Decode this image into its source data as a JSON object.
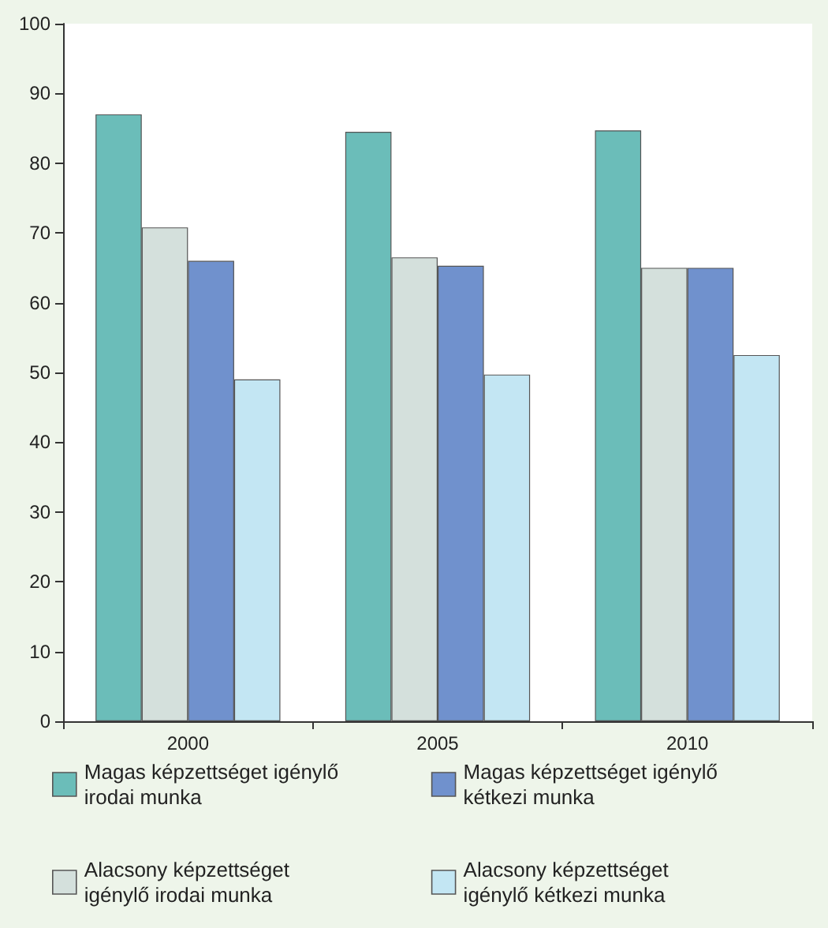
{
  "chart_data": {
    "type": "bar",
    "categories": [
      "2000",
      "2005",
      "2010"
    ],
    "series": [
      {
        "name": "Magas képzettséget igénylő irodai munka",
        "color": "#6bbdb9",
        "values": [
          87,
          84.5,
          84.7
        ]
      },
      {
        "name": "Alacsony képzettséget igénylő irodai munka",
        "color": "#d4e0dc",
        "values": [
          70.8,
          66.5,
          65
        ]
      },
      {
        "name": "Magas képzettséget igénylő kétkezi munka",
        "color": "#7091cd",
        "values": [
          66,
          65.3,
          65
        ]
      },
      {
        "name": "Alacsony képzettséget igénylő kétkezi munka",
        "color": "#c3e6f3",
        "values": [
          49,
          49.7,
          52.5
        ]
      }
    ],
    "ylim": [
      0,
      100
    ],
    "yticks": [
      0,
      10,
      20,
      30,
      40,
      50,
      60,
      70,
      80,
      90,
      100
    ],
    "grid": false,
    "legend": "bottom"
  }
}
